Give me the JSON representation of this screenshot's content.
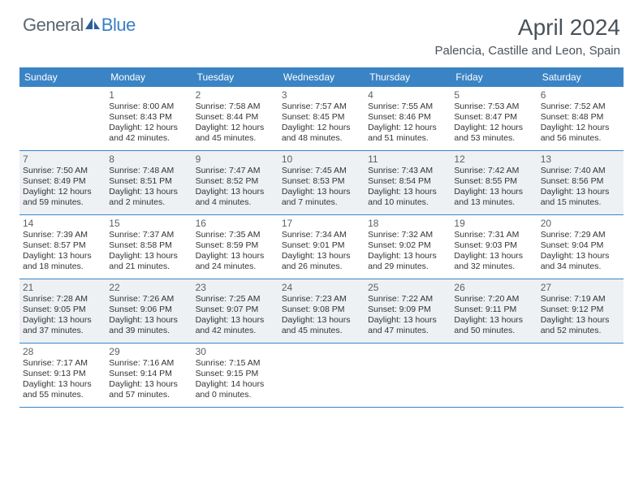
{
  "brand": {
    "text_general": "General",
    "text_blue": "Blue"
  },
  "title": "April 2024",
  "location": "Palencia, Castille and Leon, Spain",
  "colors": {
    "header_bar": "#3a84c5",
    "shade_bg": "#eef1f4",
    "text_main": "#333333",
    "text_muted": "#5a6168",
    "logo_gray": "#5c6670",
    "logo_blue": "#3a7fc4",
    "title_color": "#4a5259",
    "background": "#ffffff"
  },
  "typography": {
    "title_fontsize": 28,
    "location_fontsize": 15,
    "dow_fontsize": 12,
    "daynum_fontsize": 12,
    "body_fontsize": 10.5
  },
  "days_of_week": [
    "Sunday",
    "Monday",
    "Tuesday",
    "Wednesday",
    "Thursday",
    "Friday",
    "Saturday"
  ],
  "weeks": [
    [
      {
        "empty": true,
        "shade": false
      },
      {
        "num": "1",
        "shade": false,
        "sunrise": "Sunrise: 8:00 AM",
        "sunset": "Sunset: 8:43 PM",
        "day1": "Daylight: 12 hours",
        "day2": "and 42 minutes."
      },
      {
        "num": "2",
        "shade": false,
        "sunrise": "Sunrise: 7:58 AM",
        "sunset": "Sunset: 8:44 PM",
        "day1": "Daylight: 12 hours",
        "day2": "and 45 minutes."
      },
      {
        "num": "3",
        "shade": false,
        "sunrise": "Sunrise: 7:57 AM",
        "sunset": "Sunset: 8:45 PM",
        "day1": "Daylight: 12 hours",
        "day2": "and 48 minutes."
      },
      {
        "num": "4",
        "shade": false,
        "sunrise": "Sunrise: 7:55 AM",
        "sunset": "Sunset: 8:46 PM",
        "day1": "Daylight: 12 hours",
        "day2": "and 51 minutes."
      },
      {
        "num": "5",
        "shade": false,
        "sunrise": "Sunrise: 7:53 AM",
        "sunset": "Sunset: 8:47 PM",
        "day1": "Daylight: 12 hours",
        "day2": "and 53 minutes."
      },
      {
        "num": "6",
        "shade": false,
        "sunrise": "Sunrise: 7:52 AM",
        "sunset": "Sunset: 8:48 PM",
        "day1": "Daylight: 12 hours",
        "day2": "and 56 minutes."
      }
    ],
    [
      {
        "num": "7",
        "shade": true,
        "sunrise": "Sunrise: 7:50 AM",
        "sunset": "Sunset: 8:49 PM",
        "day1": "Daylight: 12 hours",
        "day2": "and 59 minutes."
      },
      {
        "num": "8",
        "shade": true,
        "sunrise": "Sunrise: 7:48 AM",
        "sunset": "Sunset: 8:51 PM",
        "day1": "Daylight: 13 hours",
        "day2": "and 2 minutes."
      },
      {
        "num": "9",
        "shade": true,
        "sunrise": "Sunrise: 7:47 AM",
        "sunset": "Sunset: 8:52 PM",
        "day1": "Daylight: 13 hours",
        "day2": "and 4 minutes."
      },
      {
        "num": "10",
        "shade": true,
        "sunrise": "Sunrise: 7:45 AM",
        "sunset": "Sunset: 8:53 PM",
        "day1": "Daylight: 13 hours",
        "day2": "and 7 minutes."
      },
      {
        "num": "11",
        "shade": true,
        "sunrise": "Sunrise: 7:43 AM",
        "sunset": "Sunset: 8:54 PM",
        "day1": "Daylight: 13 hours",
        "day2": "and 10 minutes."
      },
      {
        "num": "12",
        "shade": true,
        "sunrise": "Sunrise: 7:42 AM",
        "sunset": "Sunset: 8:55 PM",
        "day1": "Daylight: 13 hours",
        "day2": "and 13 minutes."
      },
      {
        "num": "13",
        "shade": true,
        "sunrise": "Sunrise: 7:40 AM",
        "sunset": "Sunset: 8:56 PM",
        "day1": "Daylight: 13 hours",
        "day2": "and 15 minutes."
      }
    ],
    [
      {
        "num": "14",
        "shade": false,
        "sunrise": "Sunrise: 7:39 AM",
        "sunset": "Sunset: 8:57 PM",
        "day1": "Daylight: 13 hours",
        "day2": "and 18 minutes."
      },
      {
        "num": "15",
        "shade": false,
        "sunrise": "Sunrise: 7:37 AM",
        "sunset": "Sunset: 8:58 PM",
        "day1": "Daylight: 13 hours",
        "day2": "and 21 minutes."
      },
      {
        "num": "16",
        "shade": false,
        "sunrise": "Sunrise: 7:35 AM",
        "sunset": "Sunset: 8:59 PM",
        "day1": "Daylight: 13 hours",
        "day2": "and 24 minutes."
      },
      {
        "num": "17",
        "shade": false,
        "sunrise": "Sunrise: 7:34 AM",
        "sunset": "Sunset: 9:01 PM",
        "day1": "Daylight: 13 hours",
        "day2": "and 26 minutes."
      },
      {
        "num": "18",
        "shade": false,
        "sunrise": "Sunrise: 7:32 AM",
        "sunset": "Sunset: 9:02 PM",
        "day1": "Daylight: 13 hours",
        "day2": "and 29 minutes."
      },
      {
        "num": "19",
        "shade": false,
        "sunrise": "Sunrise: 7:31 AM",
        "sunset": "Sunset: 9:03 PM",
        "day1": "Daylight: 13 hours",
        "day2": "and 32 minutes."
      },
      {
        "num": "20",
        "shade": false,
        "sunrise": "Sunrise: 7:29 AM",
        "sunset": "Sunset: 9:04 PM",
        "day1": "Daylight: 13 hours",
        "day2": "and 34 minutes."
      }
    ],
    [
      {
        "num": "21",
        "shade": true,
        "sunrise": "Sunrise: 7:28 AM",
        "sunset": "Sunset: 9:05 PM",
        "day1": "Daylight: 13 hours",
        "day2": "and 37 minutes."
      },
      {
        "num": "22",
        "shade": true,
        "sunrise": "Sunrise: 7:26 AM",
        "sunset": "Sunset: 9:06 PM",
        "day1": "Daylight: 13 hours",
        "day2": "and 39 minutes."
      },
      {
        "num": "23",
        "shade": true,
        "sunrise": "Sunrise: 7:25 AM",
        "sunset": "Sunset: 9:07 PM",
        "day1": "Daylight: 13 hours",
        "day2": "and 42 minutes."
      },
      {
        "num": "24",
        "shade": true,
        "sunrise": "Sunrise: 7:23 AM",
        "sunset": "Sunset: 9:08 PM",
        "day1": "Daylight: 13 hours",
        "day2": "and 45 minutes."
      },
      {
        "num": "25",
        "shade": true,
        "sunrise": "Sunrise: 7:22 AM",
        "sunset": "Sunset: 9:09 PM",
        "day1": "Daylight: 13 hours",
        "day2": "and 47 minutes."
      },
      {
        "num": "26",
        "shade": true,
        "sunrise": "Sunrise: 7:20 AM",
        "sunset": "Sunset: 9:11 PM",
        "day1": "Daylight: 13 hours",
        "day2": "and 50 minutes."
      },
      {
        "num": "27",
        "shade": true,
        "sunrise": "Sunrise: 7:19 AM",
        "sunset": "Sunset: 9:12 PM",
        "day1": "Daylight: 13 hours",
        "day2": "and 52 minutes."
      }
    ],
    [
      {
        "num": "28",
        "shade": false,
        "sunrise": "Sunrise: 7:17 AM",
        "sunset": "Sunset: 9:13 PM",
        "day1": "Daylight: 13 hours",
        "day2": "and 55 minutes."
      },
      {
        "num": "29",
        "shade": false,
        "sunrise": "Sunrise: 7:16 AM",
        "sunset": "Sunset: 9:14 PM",
        "day1": "Daylight: 13 hours",
        "day2": "and 57 minutes."
      },
      {
        "num": "30",
        "shade": false,
        "sunrise": "Sunrise: 7:15 AM",
        "sunset": "Sunset: 9:15 PM",
        "day1": "Daylight: 14 hours",
        "day2": "and 0 minutes."
      },
      {
        "empty": true,
        "shade": false
      },
      {
        "empty": true,
        "shade": false
      },
      {
        "empty": true,
        "shade": false
      },
      {
        "empty": true,
        "shade": false
      }
    ]
  ]
}
